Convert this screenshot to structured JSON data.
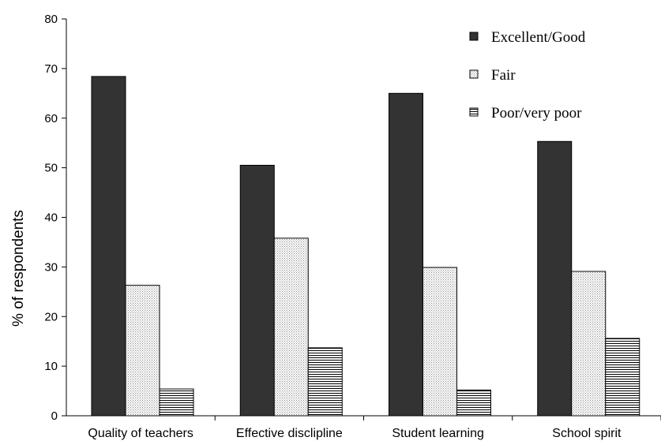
{
  "chart_data": {
    "type": "bar",
    "title": "",
    "xlabel": "",
    "ylabel": "% of respondents",
    "ylim": [
      0,
      80
    ],
    "yticks": [
      0,
      10,
      20,
      30,
      40,
      50,
      60,
      70,
      80
    ],
    "grid": false,
    "legend_position": "top-right",
    "categories": [
      "Quality of teachers",
      "Effective disclipline",
      "Student learning",
      "School spirit"
    ],
    "series": [
      {
        "name": "Excellent/Good",
        "values": [
          68.4,
          50.5,
          65.0,
          55.3
        ],
        "pattern": "solid",
        "color": "#333333"
      },
      {
        "name": "Fair",
        "values": [
          26.3,
          35.8,
          29.9,
          29.1
        ],
        "pattern": "dots",
        "color": "#e6e6e6"
      },
      {
        "name": "Poor/very poor",
        "values": [
          5.4,
          13.7,
          5.2,
          15.6
        ],
        "pattern": "horizontal-lines",
        "color": "#ffffff"
      }
    ]
  }
}
